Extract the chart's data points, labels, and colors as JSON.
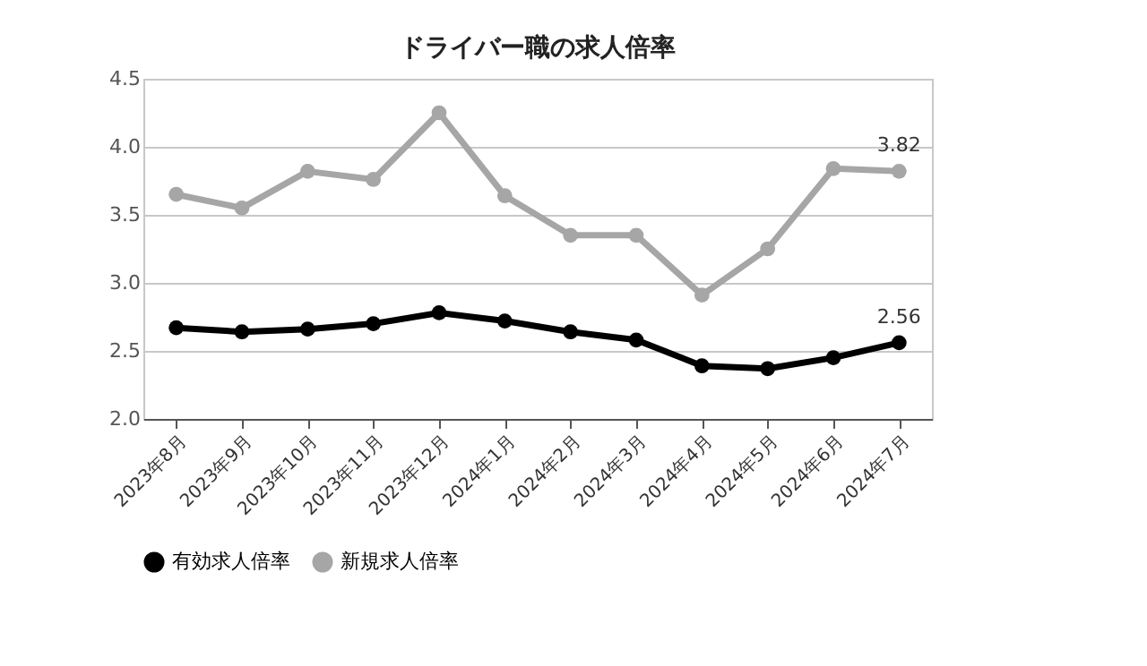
{
  "chart_data": {
    "type": "line",
    "title": "ドライバー職の求人倍率",
    "categories": [
      "2023年8月",
      "2023年9月",
      "2023年10月",
      "2023年11月",
      "2023年12月",
      "2024年1月",
      "2024年2月",
      "2024年3月",
      "2024年4月",
      "2024年5月",
      "2024年6月",
      "2024年7月"
    ],
    "series": [
      {
        "name": "有効求人倍率",
        "color": "#000000",
        "values": [
          2.67,
          2.64,
          2.66,
          2.7,
          2.78,
          2.72,
          2.64,
          2.58,
          2.39,
          2.37,
          2.45,
          2.56
        ],
        "value_labels": [
          null,
          null,
          null,
          null,
          null,
          null,
          null,
          null,
          null,
          null,
          null,
          "2.56"
        ]
      },
      {
        "name": "新規求人倍率",
        "color": "#a6a6a6",
        "values": [
          3.65,
          3.55,
          3.82,
          3.76,
          4.25,
          3.64,
          3.35,
          3.35,
          2.91,
          3.25,
          3.84,
          3.82
        ],
        "value_labels": [
          null,
          null,
          null,
          null,
          null,
          null,
          null,
          null,
          null,
          null,
          null,
          "3.82"
        ]
      }
    ],
    "ylim": [
      2.0,
      4.5
    ],
    "yticks": [
      {
        "value": 2.0,
        "label": "2.0"
      },
      {
        "value": 2.5,
        "label": "2.5"
      },
      {
        "value": 3.0,
        "label": "3.0"
      },
      {
        "value": 3.5,
        "label": "3.5"
      },
      {
        "value": 4.0,
        "label": "4.0"
      },
      {
        "value": 4.5,
        "label": "4.5"
      }
    ],
    "grid": "y",
    "legend": "bottom",
    "marker": "circle",
    "line_style": "solid"
  }
}
